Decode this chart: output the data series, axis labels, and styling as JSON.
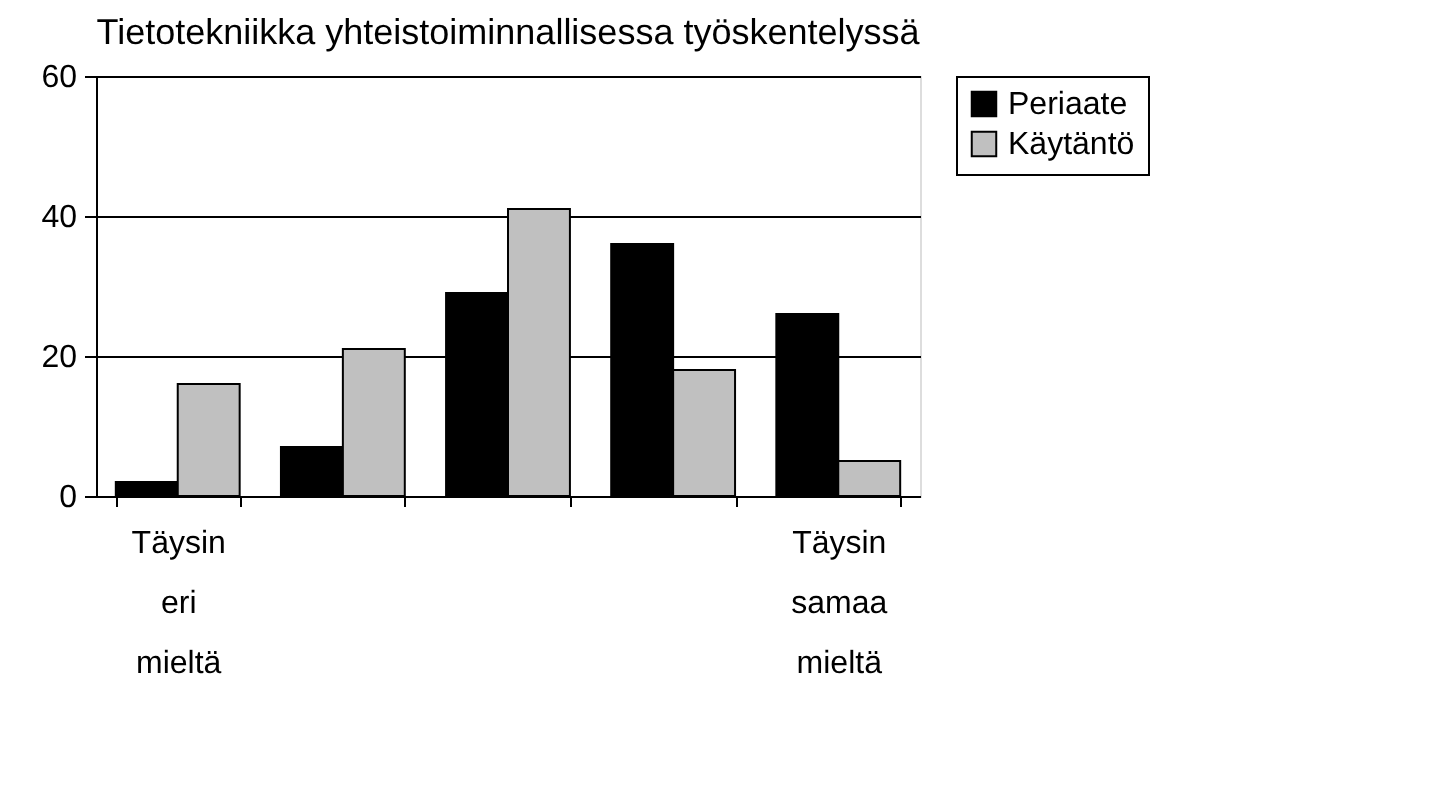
{
  "chart_data": {
    "type": "bar",
    "title": "Tietotekniikka yhteistoiminnallisessa työskentelyssä",
    "categories": [
      "Täysin eri mieltä",
      null,
      null,
      null,
      "Täysin samaa mieltä"
    ],
    "series": [
      {
        "name": "Periaate",
        "color": "#000000",
        "values": [
          2,
          7,
          29,
          36,
          26
        ]
      },
      {
        "name": "Käytäntö",
        "color": "#c0c0c0",
        "values": [
          16,
          21,
          41,
          18,
          5
        ]
      }
    ],
    "ylim": [
      0,
      60
    ],
    "yticks": [
      0,
      20,
      40,
      60
    ],
    "grid": "y",
    "legend": "right"
  }
}
